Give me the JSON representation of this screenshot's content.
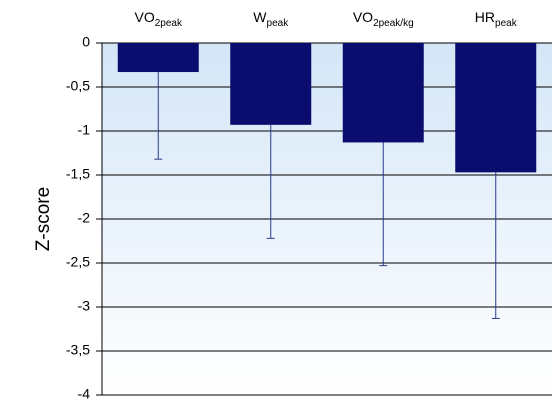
{
  "chart_data": {
    "type": "bar",
    "categories": [
      {
        "base": "VO",
        "sub": "2peak"
      },
      {
        "base": "W",
        "sub": "peak"
      },
      {
        "base": "VO",
        "sub": "2peak/kg"
      },
      {
        "base": "HR",
        "sub": "peak"
      }
    ],
    "values": [
      -0.33,
      -0.93,
      -1.13,
      -1.47
    ],
    "error_lower": [
      -1.32,
      -2.22,
      -2.53,
      -3.13
    ],
    "ylabel": "Z-score",
    "ylim": [
      -4,
      0
    ],
    "y_ticks": [
      "0",
      "-0,5",
      "-1",
      "-1,5",
      "-2",
      "-2,5",
      "-3",
      "-3,5",
      "-4"
    ],
    "category_axis_position": "top",
    "grid": true,
    "colors": {
      "bar": "#0b0d6e",
      "error_bar": "#2b3a8c",
      "plot_top": "#ffffff",
      "plot_bottom": "#d4e6f7",
      "grid": "#000000"
    }
  }
}
